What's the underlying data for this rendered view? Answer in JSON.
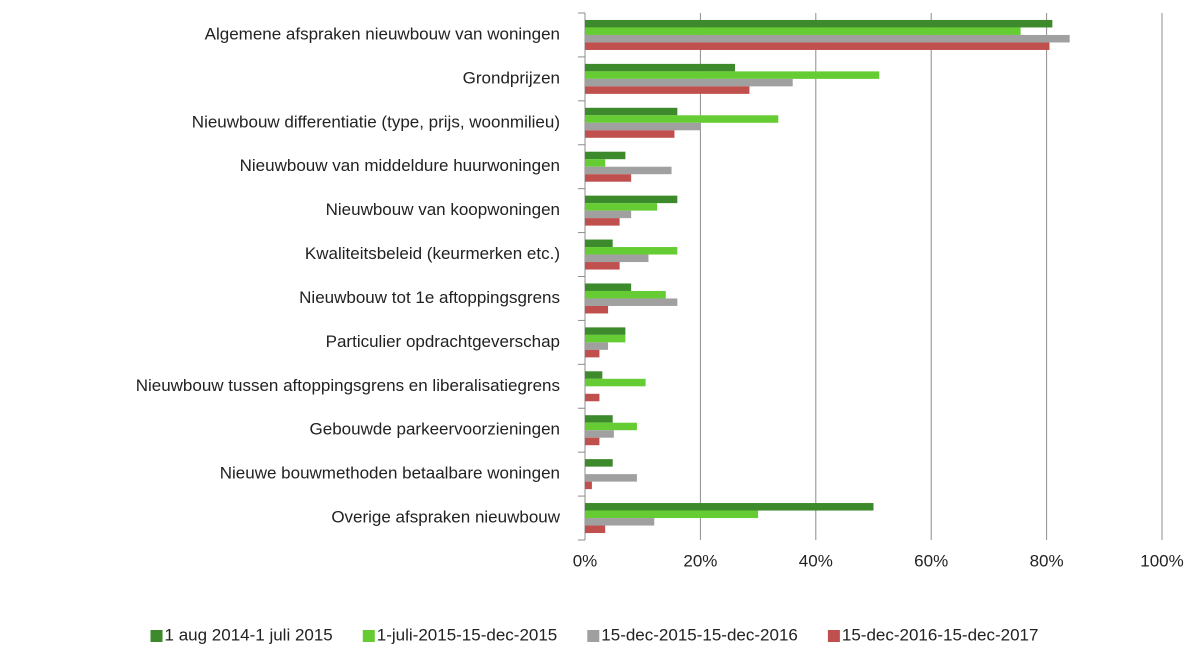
{
  "chart_data": {
    "type": "bar",
    "orientation": "horizontal",
    "categories": [
      "Algemene afspraken nieuwbouw van woningen",
      "Grondprijzen",
      "Nieuwbouw differentiatie (type, prijs, woonmilieu)",
      "Nieuwbouw van middeldure huurwoningen",
      "Nieuwbouw van koopwoningen",
      "Kwaliteitsbeleid (keurmerken etc.)",
      "Nieuwbouw tot 1e aftoppingsgrens",
      "Particulier opdrachtgeverschap",
      "Nieuwbouw tussen aftoppingsgrens en liberalisatiegrens",
      "Gebouwde parkeervoorzieningen",
      "Nieuwe bouwmethoden betaalbare woningen",
      "Overige afspraken nieuwbouw"
    ],
    "series": [
      {
        "name": "1 aug 2014-1 juli 2015",
        "color": "#3c8a2b",
        "values": [
          81,
          26,
          16,
          7,
          16,
          4.8,
          8,
          7,
          3,
          4.8,
          4.8,
          50
        ]
      },
      {
        "name": "1-juli-2015-15-dec-2015",
        "color": "#66cc33",
        "values": [
          75.5,
          51,
          33.5,
          3.5,
          12.5,
          16,
          14,
          7,
          10.5,
          9,
          0,
          30
        ]
      },
      {
        "name": "15-dec-2015-15-dec-2016",
        "color": "#a0a0a0",
        "values": [
          84,
          36,
          20,
          15,
          8,
          11,
          16,
          4,
          0,
          5,
          9,
          12
        ]
      },
      {
        "name": "15-dec-2016-15-dec-2017",
        "color": "#c0504d",
        "values": [
          80.5,
          28.5,
          15.5,
          8,
          6,
          6,
          4,
          2.5,
          2.5,
          2.5,
          1.2,
          3.5
        ]
      }
    ],
    "xlim": [
      0,
      100
    ],
    "xticks": [
      {
        "value": 0,
        "label": "0%"
      },
      {
        "value": 20,
        "label": "20%"
      },
      {
        "value": 40,
        "label": "40%"
      },
      {
        "value": 60,
        "label": "60%"
      },
      {
        "value": 80,
        "label": "80%"
      },
      {
        "value": 100,
        "label": "100%"
      }
    ],
    "grid": true,
    "legend": "bottom"
  }
}
